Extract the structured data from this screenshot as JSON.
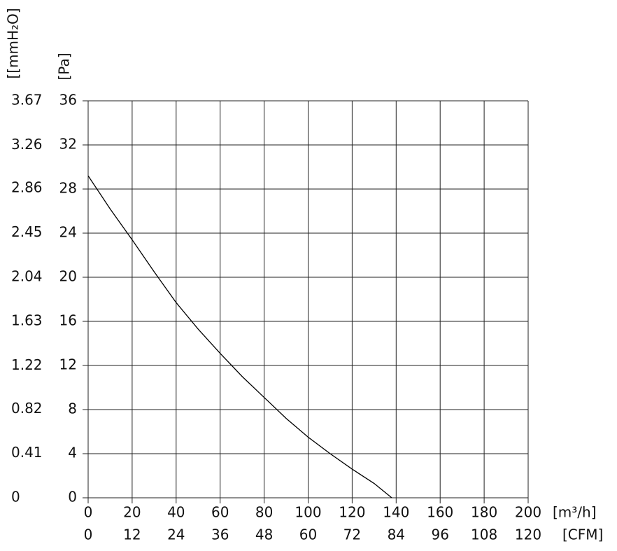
{
  "chart_data": {
    "type": "line",
    "x_label": "[m³/h]",
    "x2_label": "[CFM]",
    "y_label": "[Pa]",
    "y2_label": "[[mmH₂O]",
    "xlim": [
      0,
      200
    ],
    "xticks": [
      0,
      20,
      40,
      60,
      80,
      100,
      120,
      140,
      160,
      180,
      200
    ],
    "x2lim": [
      0,
      120
    ],
    "x2ticks": [
      0,
      12,
      24,
      36,
      48,
      60,
      72,
      84,
      96,
      108,
      120
    ],
    "ylim": [
      0,
      36
    ],
    "yticks": [
      0,
      4,
      8,
      12,
      16,
      20,
      24,
      28,
      32,
      36
    ],
    "y2lim": [
      0,
      3.67
    ],
    "y2ticks": [
      0,
      0.41,
      0.82,
      1.22,
      1.63,
      2.04,
      2.45,
      2.86,
      3.26,
      3.67
    ],
    "grid": true,
    "series": [
      {
        "color": "#000000",
        "x": [
          0,
          10,
          20,
          30,
          40,
          50,
          60,
          70,
          80,
          90,
          100,
          110,
          120,
          130,
          138
        ],
        "values": [
          29.2,
          26.2,
          23.4,
          20.5,
          17.7,
          15.3,
          13.1,
          11.0,
          9.1,
          7.2,
          5.5,
          4.0,
          2.6,
          1.3,
          0
        ]
      }
    ]
  }
}
